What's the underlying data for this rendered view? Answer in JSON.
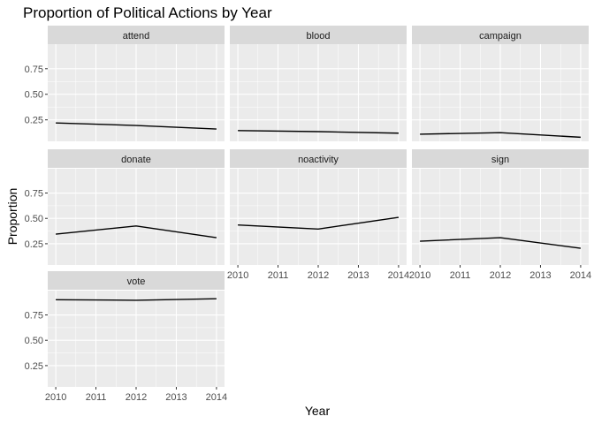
{
  "chart_data": {
    "type": "line",
    "title": "Proportion of Political Actions by Year",
    "xlabel": "Year",
    "ylabel": "Proportion",
    "x_ticks": [
      2010,
      2011,
      2012,
      2013,
      2014
    ],
    "x_tick_labels": [
      "2010",
      "2011",
      "2012",
      "2013",
      "2014"
    ],
    "y_ticks": [
      0.25,
      0.5,
      0.75
    ],
    "y_tick_labels": [
      "0.25",
      "0.50",
      "0.75"
    ],
    "xlim": [
      2009.8,
      2014.2
    ],
    "ylim": [
      0.04,
      0.99
    ],
    "grid": true,
    "facets": [
      {
        "name": "attend",
        "x": [
          2010,
          2012,
          2014
        ],
        "y": [
          0.22,
          0.195,
          0.16
        ]
      },
      {
        "name": "blood",
        "x": [
          2010,
          2012,
          2014
        ],
        "y": [
          0.145,
          0.135,
          0.12
        ]
      },
      {
        "name": "campaign",
        "x": [
          2010,
          2012,
          2014
        ],
        "y": [
          0.11,
          0.125,
          0.08
        ]
      },
      {
        "name": "donate",
        "x": [
          2010,
          2012,
          2014
        ],
        "y": [
          0.345,
          0.425,
          0.31
        ]
      },
      {
        "name": "noactivity",
        "x": [
          2010,
          2012,
          2014
        ],
        "y": [
          0.435,
          0.395,
          0.51
        ]
      },
      {
        "name": "sign",
        "x": [
          2010,
          2012,
          2014
        ],
        "y": [
          0.275,
          0.31,
          0.205
        ]
      },
      {
        "name": "vote",
        "x": [
          2010,
          2012,
          2014
        ],
        "y": [
          0.9,
          0.895,
          0.91
        ]
      }
    ]
  },
  "colors": {
    "panel_background": "#ebebeb",
    "strip_background": "#d9d9d9",
    "grid_major": "#ffffff",
    "line": "#000000"
  }
}
